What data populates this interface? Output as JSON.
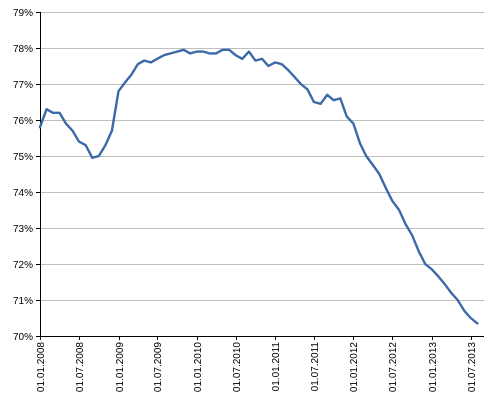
{
  "chart_data": {
    "type": "line",
    "title": "",
    "xlabel": "",
    "ylabel": "",
    "x_axis": {
      "type": "date",
      "range": [
        "2008-01-01",
        "2013-09-01"
      ],
      "tick_labels": [
        "01.01.2008",
        "01.07.2008",
        "01.01.2009",
        "01.07.2009",
        "01.01.2010",
        "01.07.2010",
        "01.01.2011",
        "01.07.2011",
        "01.01.2012",
        "01.07.2012",
        "01.01.2013",
        "01.07.2013"
      ],
      "tick_dates": [
        "2008-01-01",
        "2008-07-01",
        "2009-01-01",
        "2009-07-01",
        "2010-01-01",
        "2010-07-01",
        "2011-01-01",
        "2011-07-01",
        "2012-01-01",
        "2012-07-01",
        "2013-01-01",
        "2013-07-01"
      ]
    },
    "y_axis": {
      "range": [
        70,
        79
      ],
      "ticks": [
        70,
        71,
        72,
        73,
        74,
        75,
        76,
        77,
        78,
        79
      ],
      "tick_labels": [
        "70%",
        "71%",
        "72%",
        "73%",
        "74%",
        "75%",
        "76%",
        "77%",
        "78%",
        "79%"
      ],
      "unit": "%"
    },
    "grid": {
      "horizontal": true,
      "vertical": false
    },
    "legend": "none",
    "colors": {
      "line": "#3c6aa8",
      "grid": "#bfbfbf",
      "axis": "#000000"
    },
    "series": [
      {
        "x": [
          "2008-01-01",
          "2008-02-01",
          "2008-03-01",
          "2008-04-01",
          "2008-05-01",
          "2008-06-01",
          "2008-07-01",
          "2008-08-01",
          "2008-09-01",
          "2008-10-01",
          "2008-11-01",
          "2008-12-01",
          "2009-01-01",
          "2009-02-01",
          "2009-03-01",
          "2009-04-01",
          "2009-05-01",
          "2009-06-01",
          "2009-07-01",
          "2009-08-01",
          "2009-09-01",
          "2009-10-01",
          "2009-11-01",
          "2009-12-01",
          "2010-01-01",
          "2010-02-01",
          "2010-03-01",
          "2010-04-01",
          "2010-05-01",
          "2010-06-01",
          "2010-07-01",
          "2010-08-01",
          "2010-09-01",
          "2010-10-01",
          "2010-11-01",
          "2010-12-01",
          "2011-01-01",
          "2011-02-01",
          "2011-03-01",
          "2011-04-01",
          "2011-05-01",
          "2011-06-01",
          "2011-07-01",
          "2011-08-01",
          "2011-09-01",
          "2011-10-01",
          "2011-11-01",
          "2011-12-01",
          "2012-01-01",
          "2012-02-01",
          "2012-03-01",
          "2012-04-01",
          "2012-05-01",
          "2012-06-01",
          "2012-07-01",
          "2012-08-01",
          "2012-09-01",
          "2012-10-01",
          "2012-11-01",
          "2012-12-01",
          "2013-01-01",
          "2013-02-01",
          "2013-03-01",
          "2013-04-01",
          "2013-05-01",
          "2013-06-01",
          "2013-07-01",
          "2013-08-01"
        ],
        "values": [
          75.8,
          76.3,
          76.2,
          76.2,
          75.9,
          75.7,
          75.4,
          75.3,
          74.95,
          75.0,
          75.3,
          75.7,
          76.8,
          77.05,
          77.25,
          77.55,
          77.65,
          77.6,
          77.7,
          77.8,
          77.85,
          77.9,
          77.95,
          77.85,
          77.9,
          77.9,
          77.85,
          77.85,
          77.95,
          77.95,
          77.8,
          77.7,
          77.9,
          77.65,
          77.7,
          77.5,
          77.6,
          77.55,
          77.4,
          77.2,
          77.0,
          76.85,
          76.5,
          76.45,
          76.7,
          76.55,
          76.6,
          76.1,
          75.9,
          75.35,
          75.0,
          74.75,
          74.5,
          74.1,
          73.75,
          73.5,
          73.1,
          72.8,
          72.35,
          72.0,
          71.85,
          71.65,
          71.45,
          71.2,
          71.0,
          70.7,
          70.5,
          70.35
        ]
      }
    ]
  }
}
